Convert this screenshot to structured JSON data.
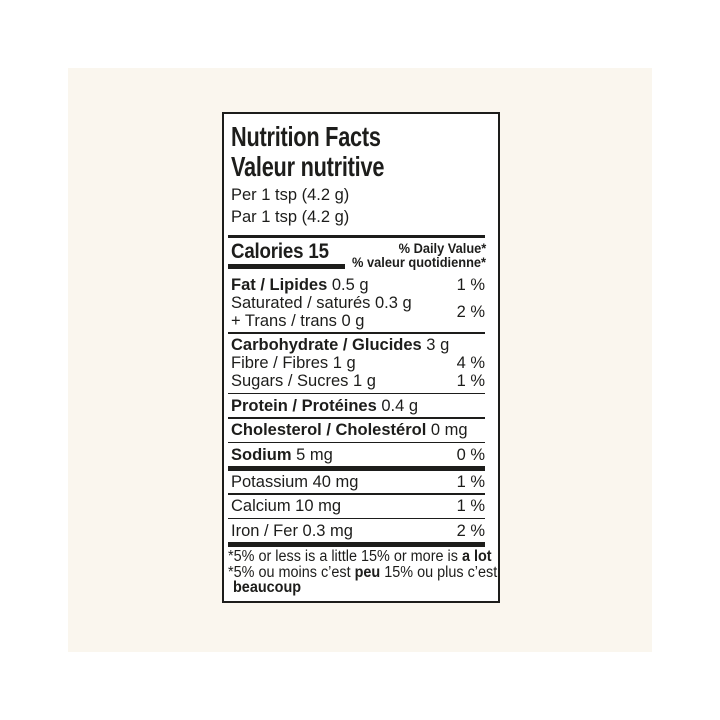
{
  "colors": {
    "page_background": "#ffffff",
    "backdrop": "#faf6ee",
    "label_background": "#ffffff",
    "ink": "#1d1d1b"
  },
  "label": {
    "title_en": "Nutrition Facts",
    "title_fr": "Valeur nutritive",
    "serving_en": "Per 1 tsp (4.2 g)",
    "serving_fr": "Par 1 tsp (4.2 g)",
    "calories_line": "Calories 15",
    "daily_value_en": "% Daily Value*",
    "daily_value_fr": "% valeur quotidienne*",
    "rows": [
      {
        "b": "Fat / Lipides",
        "r": " 0.5 g",
        "pct": "1 %"
      },
      {
        "l1": "Saturated / saturés 0.3 g",
        "l2": "+ Trans / trans 0 g",
        "pct": "2 %"
      },
      {
        "b": "Carbohydrate / Glucides",
        "r": " 3 g",
        "pct": ""
      },
      {
        "b": "",
        "r": "Fibre / Fibres 1 g",
        "pct": "4 %"
      },
      {
        "b": "",
        "r": "Sugars / Sucres 1 g",
        "pct": "1 %"
      },
      {
        "b": "Protein / Protéines",
        "r": " 0.4 g",
        "pct": ""
      },
      {
        "b": "Cholesterol / Cholestérol",
        "r": " 0 mg",
        "pct": ""
      },
      {
        "b": "Sodium",
        "r": " 5 mg",
        "pct": "0 %"
      },
      {
        "b": "",
        "r": "Potassium 40 mg",
        "pct": "1 %"
      },
      {
        "b": "",
        "r": "Calcium 10 mg",
        "pct": "1 %"
      },
      {
        "b": "",
        "r": "Iron / Fer 0.3 mg",
        "pct": "2 %"
      }
    ],
    "footnote": {
      "en_pre": "*5% or less is a little 15% or more is ",
      "en_bold": "a lot",
      "fr_pre": "*5% ou moins c’est ",
      "fr_bold": "peu",
      "fr_post": " 15% ou plus c’est",
      "fr_bold2": "beaucoup"
    }
  }
}
